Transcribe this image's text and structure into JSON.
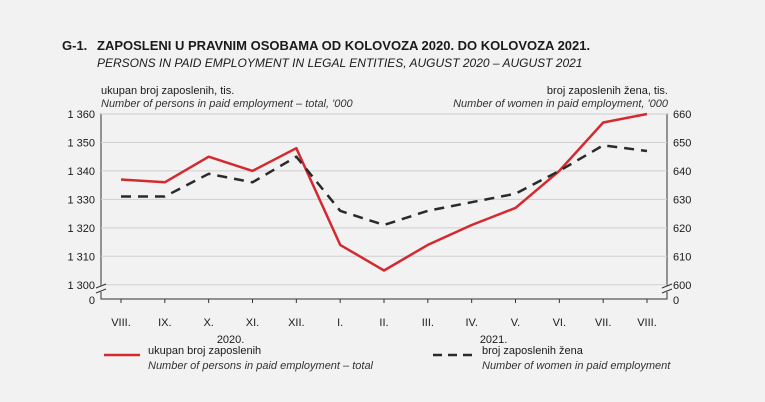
{
  "header": {
    "code": "G-1.",
    "title": "ZAPOSLENI U PRAVNIM OSOBAMA OD KOLOVOZA 2020. DO KOLOVOZA 2021.",
    "subtitle": "PERSONS IN PAID EMPLOYMENT IN LEGAL ENTITIES, AUGUST 2020 – AUGUST 2021"
  },
  "chart_data": {
    "type": "line",
    "categories": [
      "VIII.",
      "IX.",
      "X.",
      "XI.",
      "XII.",
      "I.",
      "II.",
      "III.",
      "IV.",
      "V.",
      "VI.",
      "VII.",
      "VIII."
    ],
    "year_labels": [
      {
        "label": "2020.",
        "at_index": 2.5
      },
      {
        "label": "2021.",
        "at_index": 8.5
      }
    ],
    "y_left": {
      "label": "ukupan broj zaposlenih, tis.",
      "label_en": "Number of persons in paid employment – total, '000",
      "ticks": [
        "1 360",
        "1 350",
        "1 340",
        "1 330",
        "1 320",
        "1 310",
        "1 300",
        "0"
      ],
      "tick_values": [
        1360,
        1350,
        1340,
        1330,
        1320,
        1310,
        1300
      ],
      "range": [
        1295,
        1360
      ],
      "break": true
    },
    "y_right": {
      "label": "broj zaposlenih žena, tis.",
      "label_en": "Number of women in paid employment, '000",
      "ticks": [
        "660",
        "650",
        "640",
        "630",
        "620",
        "610",
        "600",
        "0"
      ],
      "tick_values": [
        660,
        650,
        640,
        630,
        620,
        610,
        600
      ],
      "range": [
        595,
        660
      ],
      "break": true
    },
    "grid": "horizontal",
    "series": [
      {
        "name": "ukupan broj zaposlenih",
        "name_en": "Number of persons in paid employment – total",
        "axis": "left",
        "style": "solid",
        "color": "#d42a2f",
        "values": [
          1337,
          1336,
          1345,
          1340,
          1348,
          1314,
          1305,
          1314,
          1321,
          1327,
          1340,
          1357,
          1360
        ]
      },
      {
        "name": "broj zaposlenih žena",
        "name_en": "Number of women in paid employment",
        "axis": "right",
        "style": "dashed",
        "color": "#2a2a2a",
        "values": [
          631,
          631,
          639,
          636,
          645,
          626,
          621,
          626,
          629,
          632,
          640,
          649,
          647
        ]
      }
    ]
  }
}
